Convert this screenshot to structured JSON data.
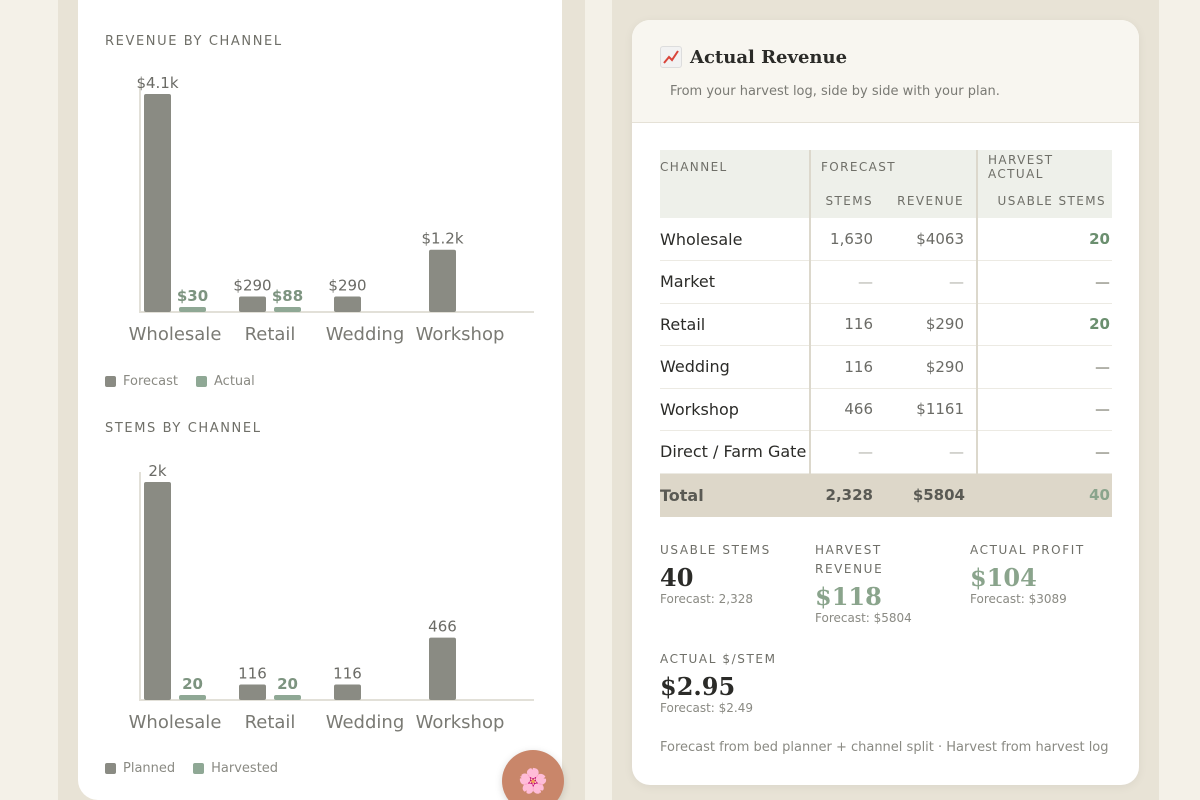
{
  "colors": {
    "forecast": "#8a8b83",
    "actual": "#8fa895",
    "accent_green": "#8aa48c",
    "fab": "#c9866a"
  },
  "revenue_chart": {
    "title": "REVENUE BY CHANNEL",
    "legend": [
      "Forecast",
      "Actual"
    ],
    "chart_data": {
      "type": "bar",
      "categories": [
        "Wholesale",
        "Retail",
        "Wedding",
        "Workshop"
      ],
      "series": [
        {
          "name": "Forecast",
          "values": [
            4063,
            290,
            290,
            1161
          ],
          "labels": [
            "$4.1k",
            "$290",
            "$290",
            "$1.2k"
          ]
        },
        {
          "name": "Actual",
          "values": [
            30,
            88,
            null,
            null
          ],
          "labels": [
            "$30",
            "$88",
            "",
            ""
          ]
        }
      ],
      "ylim": [
        0,
        4063
      ]
    }
  },
  "stems_chart": {
    "title": "STEMS BY CHANNEL",
    "legend": [
      "Planned",
      "Harvested"
    ],
    "chart_data": {
      "type": "bar",
      "categories": [
        "Wholesale",
        "Retail",
        "Wedding",
        "Workshop"
      ],
      "series": [
        {
          "name": "Planned",
          "values": [
            1630,
            116,
            116,
            466
          ],
          "labels": [
            "2k",
            "116",
            "116",
            "466"
          ]
        },
        {
          "name": "Harvested",
          "values": [
            20,
            20,
            null,
            null
          ],
          "labels": [
            "20",
            "20",
            "",
            ""
          ]
        }
      ],
      "ylim": [
        0,
        1630
      ]
    }
  },
  "fab_icon": "flower-icon",
  "fab_glyph": "🌸",
  "actual_revenue": {
    "title": "Actual Revenue",
    "subtitle": "From your harvest log, side by side with your plan.",
    "table": {
      "headers": {
        "channel": "CHANNEL",
        "forecast": "FORECAST",
        "harvest": "HARVEST ACTUAL",
        "stems": "STEMS",
        "revenue": "REVENUE",
        "usable": "USABLE STEMS"
      },
      "rows": [
        {
          "channel": "Wholesale",
          "stems": "1,630",
          "revenue": "$4063",
          "usable": "20"
        },
        {
          "channel": "Market",
          "stems": "—",
          "revenue": "—",
          "usable": "—"
        },
        {
          "channel": "Retail",
          "stems": "116",
          "revenue": "$290",
          "usable": "20"
        },
        {
          "channel": "Wedding",
          "stems": "116",
          "revenue": "$290",
          "usable": "—"
        },
        {
          "channel": "Workshop",
          "stems": "466",
          "revenue": "$1161",
          "usable": "—"
        },
        {
          "channel": "Direct / Farm Gate",
          "stems": "—",
          "revenue": "—",
          "usable": "—"
        }
      ],
      "total": {
        "channel": "Total",
        "stems": "2,328",
        "revenue": "$5804",
        "usable": "40"
      }
    },
    "stats": {
      "usable_stems": {
        "label": "USABLE STEMS",
        "value": "40",
        "forecast": "Forecast: 2,328"
      },
      "harvest_revenue": {
        "label_1": "HARVEST",
        "label_2": "REVENUE",
        "value": "$118",
        "forecast": "Forecast: $5804"
      },
      "actual_profit": {
        "label": "ACTUAL PROFIT",
        "value": "$104",
        "forecast": "Forecast: $3089"
      },
      "actual_per_stem": {
        "label": "ACTUAL $/STEM",
        "value": "$2.95",
        "forecast": "Forecast: $2.49"
      }
    },
    "footnote": "Forecast from bed planner + channel split · Harvest from harvest log"
  }
}
